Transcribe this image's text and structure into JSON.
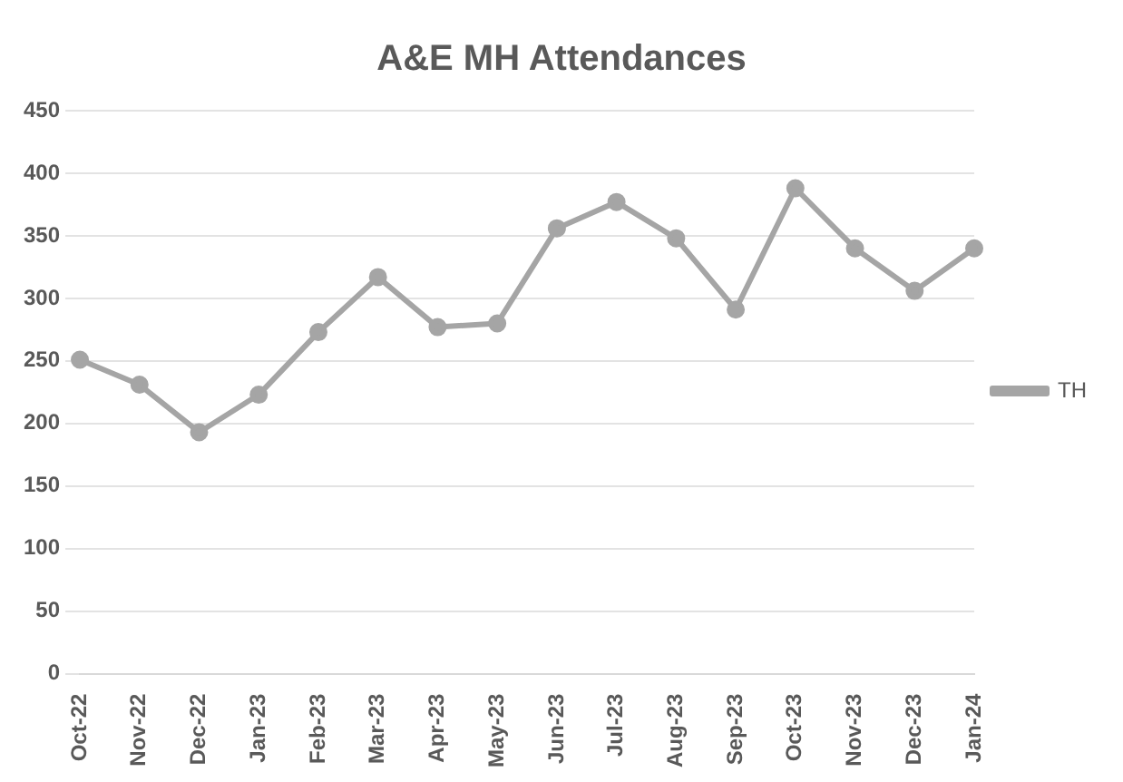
{
  "chart_data": {
    "type": "line",
    "title": "A&E MH Attendances",
    "categories": [
      "Oct-22",
      "Nov-22",
      "Dec-22",
      "Jan-23",
      "Feb-23",
      "Mar-23",
      "Apr-23",
      "May-23",
      "Jun-23",
      "Jul-23",
      "Aug-23",
      "Sep-23",
      "Oct-23",
      "Nov-23",
      "Dec-23",
      "Jan-24"
    ],
    "series": [
      {
        "name": "TH",
        "color": "#a5a5a5",
        "values": [
          251,
          231,
          193,
          223,
          273,
          317,
          277,
          280,
          356,
          377,
          348,
          291,
          388,
          340,
          306,
          340
        ]
      }
    ],
    "ylim": [
      0,
      450
    ],
    "yticks": [
      0,
      50,
      100,
      150,
      200,
      250,
      300,
      350,
      400,
      450
    ],
    "grid": "y",
    "legend": "right",
    "marker": "circle",
    "line_style": "solid"
  }
}
